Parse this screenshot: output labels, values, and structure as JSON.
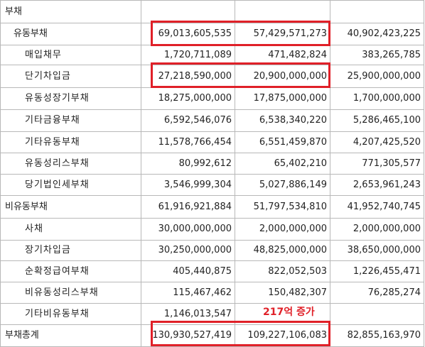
{
  "rows": [
    {
      "label": "부채",
      "level": 0,
      "v1": "",
      "v2": "",
      "v3": ""
    },
    {
      "label": "유동부채",
      "level": 1,
      "v1": "69,013,605,535",
      "v2": "57,429,571,273",
      "v3": "40,902,423,225"
    },
    {
      "label": "매입채무",
      "level": 2,
      "v1": "1,720,711,089",
      "v2": "471,482,824",
      "v3": "383,265,785"
    },
    {
      "label": "단기차입금",
      "level": 2,
      "v1": "27,218,590,000",
      "v2": "20,900,000,000",
      "v3": "25,900,000,000"
    },
    {
      "label": "유동성장기부채",
      "level": 2,
      "v1": "18,275,000,000",
      "v2": "17,875,000,000",
      "v3": "1,700,000,000"
    },
    {
      "label": "기타금융부채",
      "level": 2,
      "v1": "6,592,546,076",
      "v2": "6,538,340,220",
      "v3": "5,286,465,100"
    },
    {
      "label": "기타유동부채",
      "level": 2,
      "v1": "11,578,766,454",
      "v2": "6,551,459,870",
      "v3": "4,207,425,520"
    },
    {
      "label": "유동성리스부채",
      "level": 2,
      "v1": "80,992,612",
      "v2": "65,402,210",
      "v3": "771,305,577"
    },
    {
      "label": "당기법인세부채",
      "level": 2,
      "v1": "3,546,999,304",
      "v2": "5,027,886,149",
      "v3": "2,653,961,243"
    },
    {
      "label": "비유동부채",
      "level": 0,
      "v1": "61,916,921,884",
      "v2": "51,797,534,810",
      "v3": "41,952,740,745"
    },
    {
      "label": "사채",
      "level": 2,
      "v1": "30,000,000,000",
      "v2": "2,000,000,000",
      "v3": "2,000,000,000"
    },
    {
      "label": "장기차입금",
      "level": 2,
      "v1": "30,250,000,000",
      "v2": "48,825,000,000",
      "v3": "38,650,000,000"
    },
    {
      "label": "순확정급여부채",
      "level": 2,
      "v1": "405,440,875",
      "v2": "822,052,503",
      "v3": "1,226,455,471"
    },
    {
      "label": "비유동성리스부채",
      "level": 2,
      "v1": "115,467,462",
      "v2": "150,482,307",
      "v3": "76,285,274"
    },
    {
      "label": "기타비유동부채",
      "level": 2,
      "v1": "1,146,013,547",
      "v2": "",
      "v3": ""
    },
    {
      "label": "부채총계",
      "level": 0,
      "v1": "130,930,527,419",
      "v2": "109,227,106,083",
      "v3": "82,855,163,970"
    }
  ],
  "annotation": "217억 증가",
  "highlight_color": "#e02028"
}
